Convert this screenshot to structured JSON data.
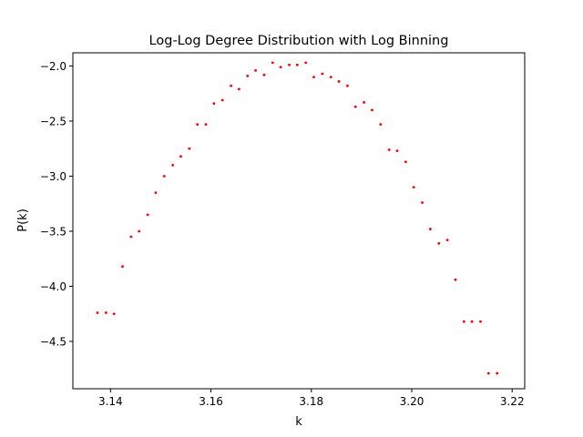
{
  "chart_data": {
    "type": "scatter",
    "title": "Log-Log Degree Distribution with Log Binning",
    "xlabel": "k",
    "ylabel": "P(k)",
    "xlim": [
      3.1325,
      3.2225
    ],
    "ylim": [
      -4.93,
      -1.88
    ],
    "xticks": [
      3.14,
      3.16,
      3.18,
      3.2,
      3.22
    ],
    "xtick_labels": [
      "3.14",
      "3.16",
      "3.18",
      "3.20",
      "3.22"
    ],
    "yticks": [
      -2.0,
      -2.5,
      -3.0,
      -3.5,
      -4.0,
      -4.5
    ],
    "ytick_labels": [
      "−2.0",
      "−2.5",
      "−3.0",
      "−3.5",
      "−4.0",
      "−4.5"
    ],
    "grid": false,
    "marker_color": "#ff0000",
    "series": [
      {
        "points": [
          [
            3.1374,
            -4.24
          ],
          [
            3.1391,
            -4.24
          ],
          [
            3.1407,
            -4.25
          ],
          [
            3.1424,
            -3.82
          ],
          [
            3.1441,
            -3.55
          ],
          [
            3.1457,
            -3.5
          ],
          [
            3.1474,
            -3.35
          ],
          [
            3.149,
            -3.15
          ],
          [
            3.1507,
            -3.0
          ],
          [
            3.1524,
            -2.9
          ],
          [
            3.154,
            -2.82
          ],
          [
            3.1557,
            -2.75
          ],
          [
            3.1573,
            -2.53
          ],
          [
            3.159,
            -2.53
          ],
          [
            3.1606,
            -2.34
          ],
          [
            3.1623,
            -2.31
          ],
          [
            3.164,
            -2.18
          ],
          [
            3.1656,
            -2.21
          ],
          [
            3.1673,
            -2.09
          ],
          [
            3.1689,
            -2.04
          ],
          [
            3.1706,
            -2.08
          ],
          [
            3.1723,
            -1.97
          ],
          [
            3.1739,
            -2.01
          ],
          [
            3.1756,
            -1.99
          ],
          [
            3.1772,
            -1.99
          ],
          [
            3.1789,
            -1.97
          ],
          [
            3.1805,
            -2.1
          ],
          [
            3.1822,
            -2.07
          ],
          [
            3.1839,
            -2.1
          ],
          [
            3.1855,
            -2.14
          ],
          [
            3.1872,
            -2.18
          ],
          [
            3.1888,
            -2.37
          ],
          [
            3.1905,
            -2.33
          ],
          [
            3.1921,
            -2.4
          ],
          [
            3.1938,
            -2.53
          ],
          [
            3.1955,
            -2.76
          ],
          [
            3.1971,
            -2.77
          ],
          [
            3.1988,
            -2.87
          ],
          [
            3.2004,
            -3.1
          ],
          [
            3.2021,
            -3.24
          ],
          [
            3.2037,
            -3.48
          ],
          [
            3.2054,
            -3.61
          ],
          [
            3.2071,
            -3.58
          ],
          [
            3.2087,
            -3.94
          ],
          [
            3.2104,
            -4.32
          ],
          [
            3.212,
            -4.32
          ],
          [
            3.2137,
            -4.32
          ],
          [
            3.2153,
            -4.79
          ],
          [
            3.217,
            -4.79
          ]
        ]
      }
    ]
  }
}
